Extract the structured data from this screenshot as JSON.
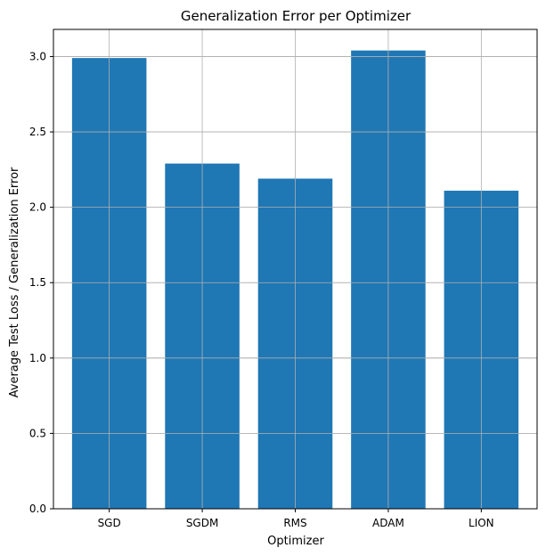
{
  "chart_data": {
    "type": "bar",
    "title": "Generalization Error per Optimizer",
    "xlabel": "Optimizer",
    "ylabel": "Average Test Loss / Generalization Error",
    "categories": [
      "SGD",
      "SGDM",
      "RMS",
      "ADAM",
      "LION"
    ],
    "values": [
      2.99,
      2.29,
      2.19,
      3.04,
      2.11
    ],
    "ylim": [
      0,
      3.18
    ],
    "yticks": [
      "0.0",
      "0.5",
      "1.0",
      "1.5",
      "2.0",
      "2.5",
      "3.0"
    ],
    "grid": true,
    "bar_color": "#1f77b4",
    "grid_color": "#b0b0b0"
  }
}
